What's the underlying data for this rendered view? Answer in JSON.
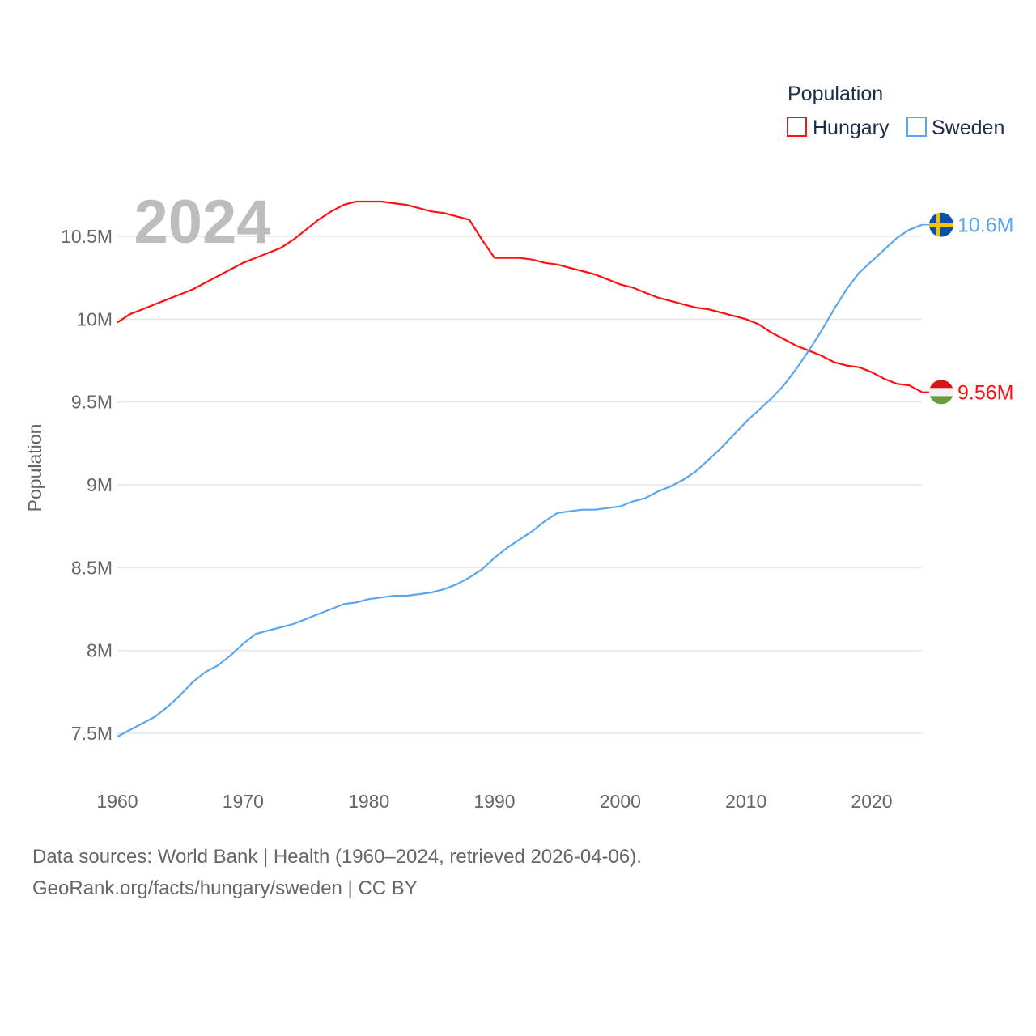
{
  "chart_data": {
    "type": "line",
    "title": "Population",
    "xlabel": "",
    "ylabel": "Population",
    "current_year_label": "2024",
    "xlim": [
      1960,
      2024
    ],
    "ylim": [
      7.25,
      10.95
    ],
    "x_ticks": [
      1960,
      1970,
      1980,
      1990,
      2000,
      2010,
      2020
    ],
    "x_tick_labels": [
      "1960",
      "1970",
      "1980",
      "1990",
      "2000",
      "2010",
      "2020"
    ],
    "y_ticks": [
      7.5,
      8,
      8.5,
      9,
      9.5,
      10,
      10.5
    ],
    "y_tick_labels": [
      "7.5M",
      "8M",
      "8.5M",
      "9M",
      "9.5M",
      "10M",
      "10.5M"
    ],
    "grid": true,
    "legend_title": "Population",
    "legend_placement": "top-right",
    "x": [
      1960,
      1961,
      1962,
      1963,
      1964,
      1965,
      1966,
      1967,
      1968,
      1969,
      1970,
      1971,
      1972,
      1973,
      1974,
      1975,
      1976,
      1977,
      1978,
      1979,
      1980,
      1981,
      1982,
      1983,
      1984,
      1985,
      1986,
      1987,
      1988,
      1989,
      1990,
      1991,
      1992,
      1993,
      1994,
      1995,
      1996,
      1997,
      1998,
      1999,
      2000,
      2001,
      2002,
      2003,
      2004,
      2005,
      2006,
      2007,
      2008,
      2009,
      2010,
      2011,
      2012,
      2013,
      2014,
      2015,
      2016,
      2017,
      2018,
      2019,
      2020,
      2021,
      2022,
      2023,
      2024
    ],
    "series": [
      {
        "name": "Hungary",
        "color": "#ff1111",
        "end_label": "9.56M",
        "flag": "hungary-flag",
        "values": [
          9.98,
          10.03,
          10.06,
          10.09,
          10.12,
          10.15,
          10.18,
          10.22,
          10.26,
          10.3,
          10.34,
          10.37,
          10.4,
          10.43,
          10.48,
          10.54,
          10.6,
          10.65,
          10.69,
          10.71,
          10.71,
          10.71,
          10.7,
          10.69,
          10.67,
          10.65,
          10.64,
          10.62,
          10.6,
          10.48,
          10.37,
          10.37,
          10.37,
          10.36,
          10.34,
          10.33,
          10.31,
          10.29,
          10.27,
          10.24,
          10.21,
          10.19,
          10.16,
          10.13,
          10.11,
          10.09,
          10.07,
          10.06,
          10.04,
          10.02,
          10.0,
          9.97,
          9.92,
          9.88,
          9.84,
          9.81,
          9.78,
          9.74,
          9.72,
          9.71,
          9.68,
          9.64,
          9.61,
          9.6,
          9.56
        ]
      },
      {
        "name": "Sweden",
        "color": "#5aa6ec",
        "end_label": "10.6M",
        "flag": "sweden-flag",
        "values": [
          7.48,
          7.52,
          7.56,
          7.6,
          7.66,
          7.73,
          7.81,
          7.87,
          7.91,
          7.97,
          8.04,
          8.1,
          8.12,
          8.14,
          8.16,
          8.19,
          8.22,
          8.25,
          8.28,
          8.29,
          8.31,
          8.32,
          8.33,
          8.33,
          8.34,
          8.35,
          8.37,
          8.4,
          8.44,
          8.49,
          8.56,
          8.62,
          8.67,
          8.72,
          8.78,
          8.83,
          8.84,
          8.85,
          8.85,
          8.86,
          8.87,
          8.9,
          8.92,
          8.96,
          8.99,
          9.03,
          9.08,
          9.15,
          9.22,
          9.3,
          9.38,
          9.45,
          9.52,
          9.6,
          9.7,
          9.81,
          9.93,
          10.06,
          10.18,
          10.28,
          10.35,
          10.42,
          10.49,
          10.54,
          10.57
        ]
      }
    ]
  },
  "footer": {
    "line1": "Data sources: World Bank | Health (1960–2024, retrieved 2026-04-06).",
    "line2": "GeoRank.org/facts/hungary/sweden | CC BY"
  }
}
